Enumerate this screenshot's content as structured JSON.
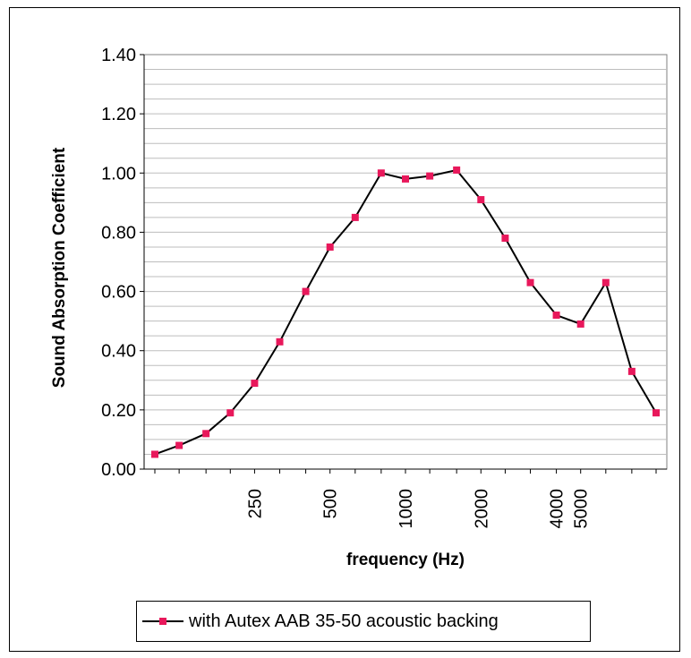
{
  "chart_data": {
    "type": "line",
    "title": "",
    "xlabel": "frequency (Hz)",
    "ylabel": "Sound Absorption Coefficient",
    "x_tick_labels": [
      "250",
      "500",
      "1000",
      "2000",
      "4000",
      "5000"
    ],
    "y_tick_labels": [
      "0.00",
      "0.20",
      "0.40",
      "0.60",
      "0.80",
      "1.00",
      "1.20",
      "1.40"
    ],
    "ylim": [
      0,
      1.4
    ],
    "x_scale": "log",
    "x": [
      100,
      125,
      160,
      200,
      250,
      315,
      400,
      500,
      630,
      800,
      1000,
      1250,
      1600,
      2000,
      2500,
      3150,
      4000,
      5000,
      6300,
      8000,
      10000
    ],
    "series": [
      {
        "name": "with Autex AAB 35-50 acoustic backing",
        "values": [
          0.05,
          0.08,
          0.12,
          0.19,
          0.29,
          0.43,
          0.6,
          0.75,
          0.85,
          1.0,
          0.98,
          0.99,
          1.01,
          0.91,
          0.78,
          0.63,
          0.52,
          0.49,
          0.63,
          0.33,
          0.19
        ]
      }
    ],
    "grid": "horizontal",
    "legend_position": "bottom",
    "colors": {
      "line": "#000000",
      "marker": "#e8185b",
      "grid": "#bdbdbd",
      "plot_bg": "#ffffff"
    }
  }
}
